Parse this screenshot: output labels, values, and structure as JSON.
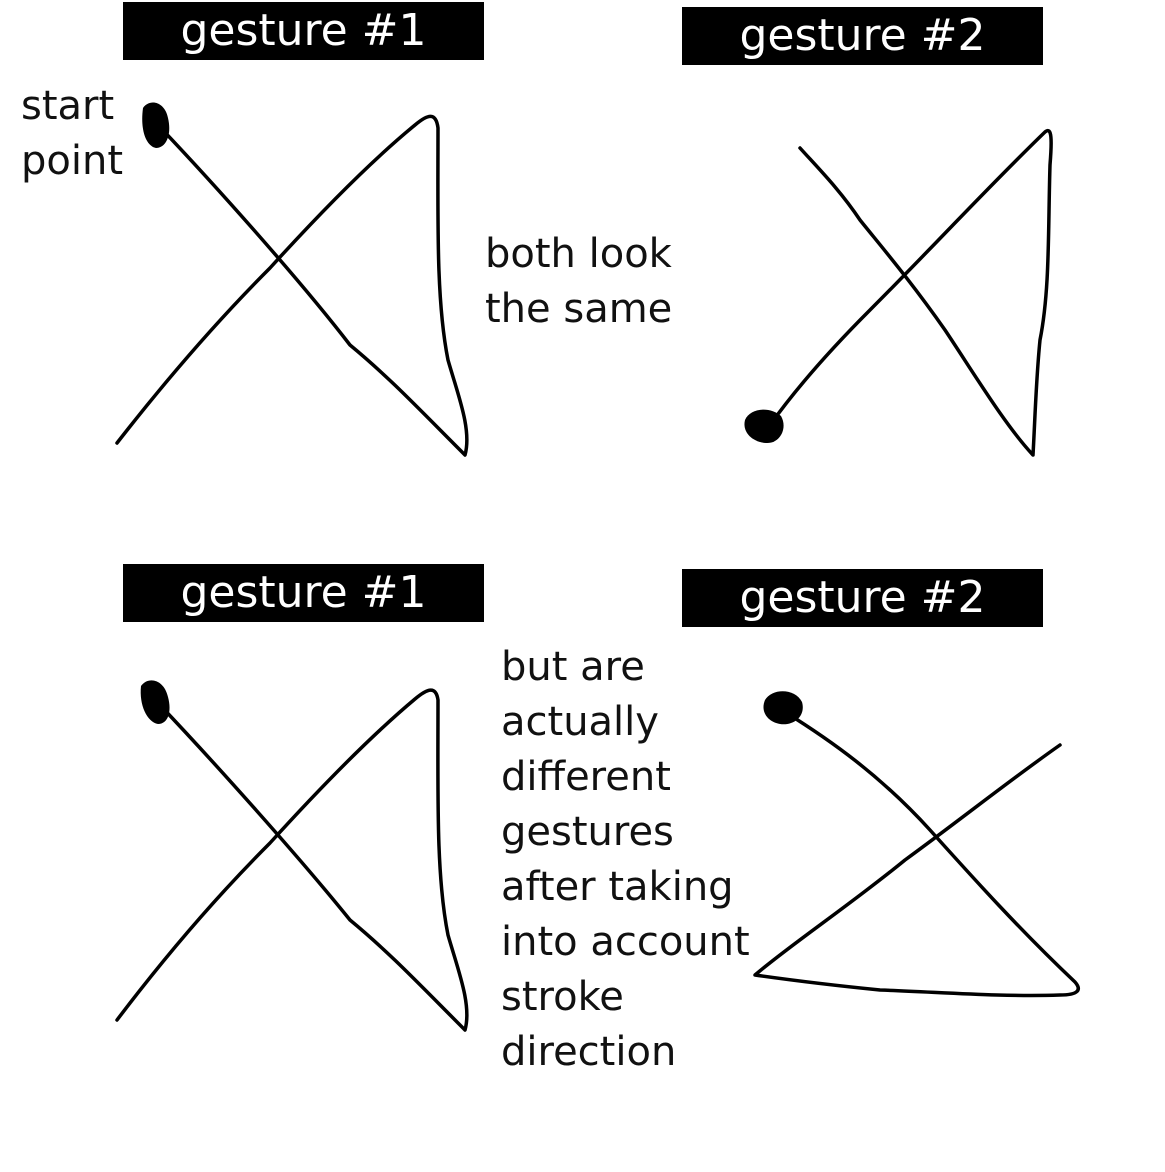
{
  "top_row": {
    "left_label": "gesture #1",
    "right_label": "gesture #2",
    "start_note": [
      "start",
      "point"
    ],
    "middle_note": [
      "both look",
      "the same"
    ]
  },
  "bottom_row": {
    "left_label": "gesture #1",
    "right_label": "gesture #2",
    "middle_note": [
      "but are",
      "actually",
      "different",
      "gestures",
      "after taking",
      "into account",
      "stroke",
      "direction"
    ]
  },
  "colors": {
    "label_background": "#000000",
    "label_text": "#ffffff",
    "stroke": "#000000"
  }
}
